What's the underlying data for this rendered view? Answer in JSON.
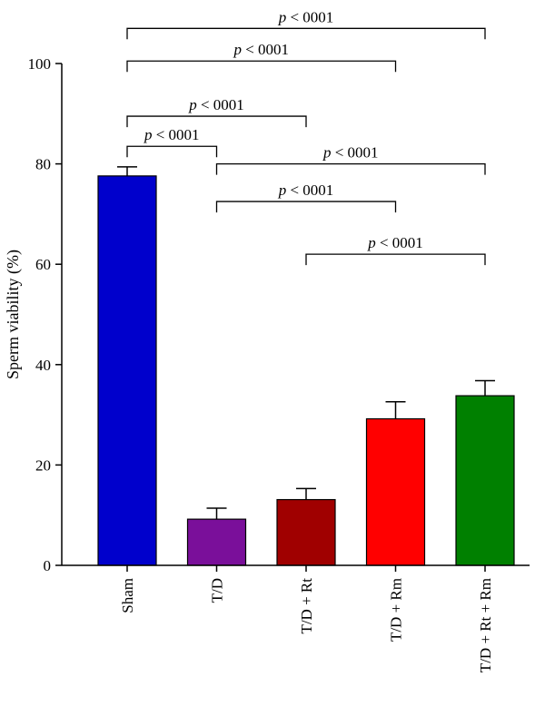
{
  "chart_data": {
    "type": "bar",
    "ylabel": "Sperm viability (%)",
    "ylim": [
      0,
      100
    ],
    "yticks": [
      0,
      20,
      40,
      60,
      80,
      100
    ],
    "categories": [
      "Sham",
      "T/D",
      "T/D + Rt",
      "T/D + Rm",
      "T/D + Rt + Rm"
    ],
    "values": [
      77.6,
      9.2,
      13.1,
      29.2,
      33.8
    ],
    "errors": [
      1.8,
      2.2,
      2.2,
      3.4,
      3.0
    ],
    "colors": [
      "#0000cc",
      "#7a0f9a",
      "#a00000",
      "#ff0000",
      "#008000"
    ],
    "comparisons": [
      {
        "from": 0,
        "to": 4,
        "label": "p < 0001",
        "y": 107
      },
      {
        "from": 0,
        "to": 3,
        "label": "p < 0001",
        "y": 100.5
      },
      {
        "from": 0,
        "to": 2,
        "label": "p < 0001",
        "y": 89.5
      },
      {
        "from": 0,
        "to": 1,
        "label": "p < 0001",
        "y": 83.5
      },
      {
        "from": 1,
        "to": 4,
        "label": "p < 0001",
        "y": 80
      },
      {
        "from": 1,
        "to": 3,
        "label": "p < 0001",
        "y": 72.5
      },
      {
        "from": 2,
        "to": 4,
        "label": "p < 0001",
        "y": 62
      }
    ]
  }
}
